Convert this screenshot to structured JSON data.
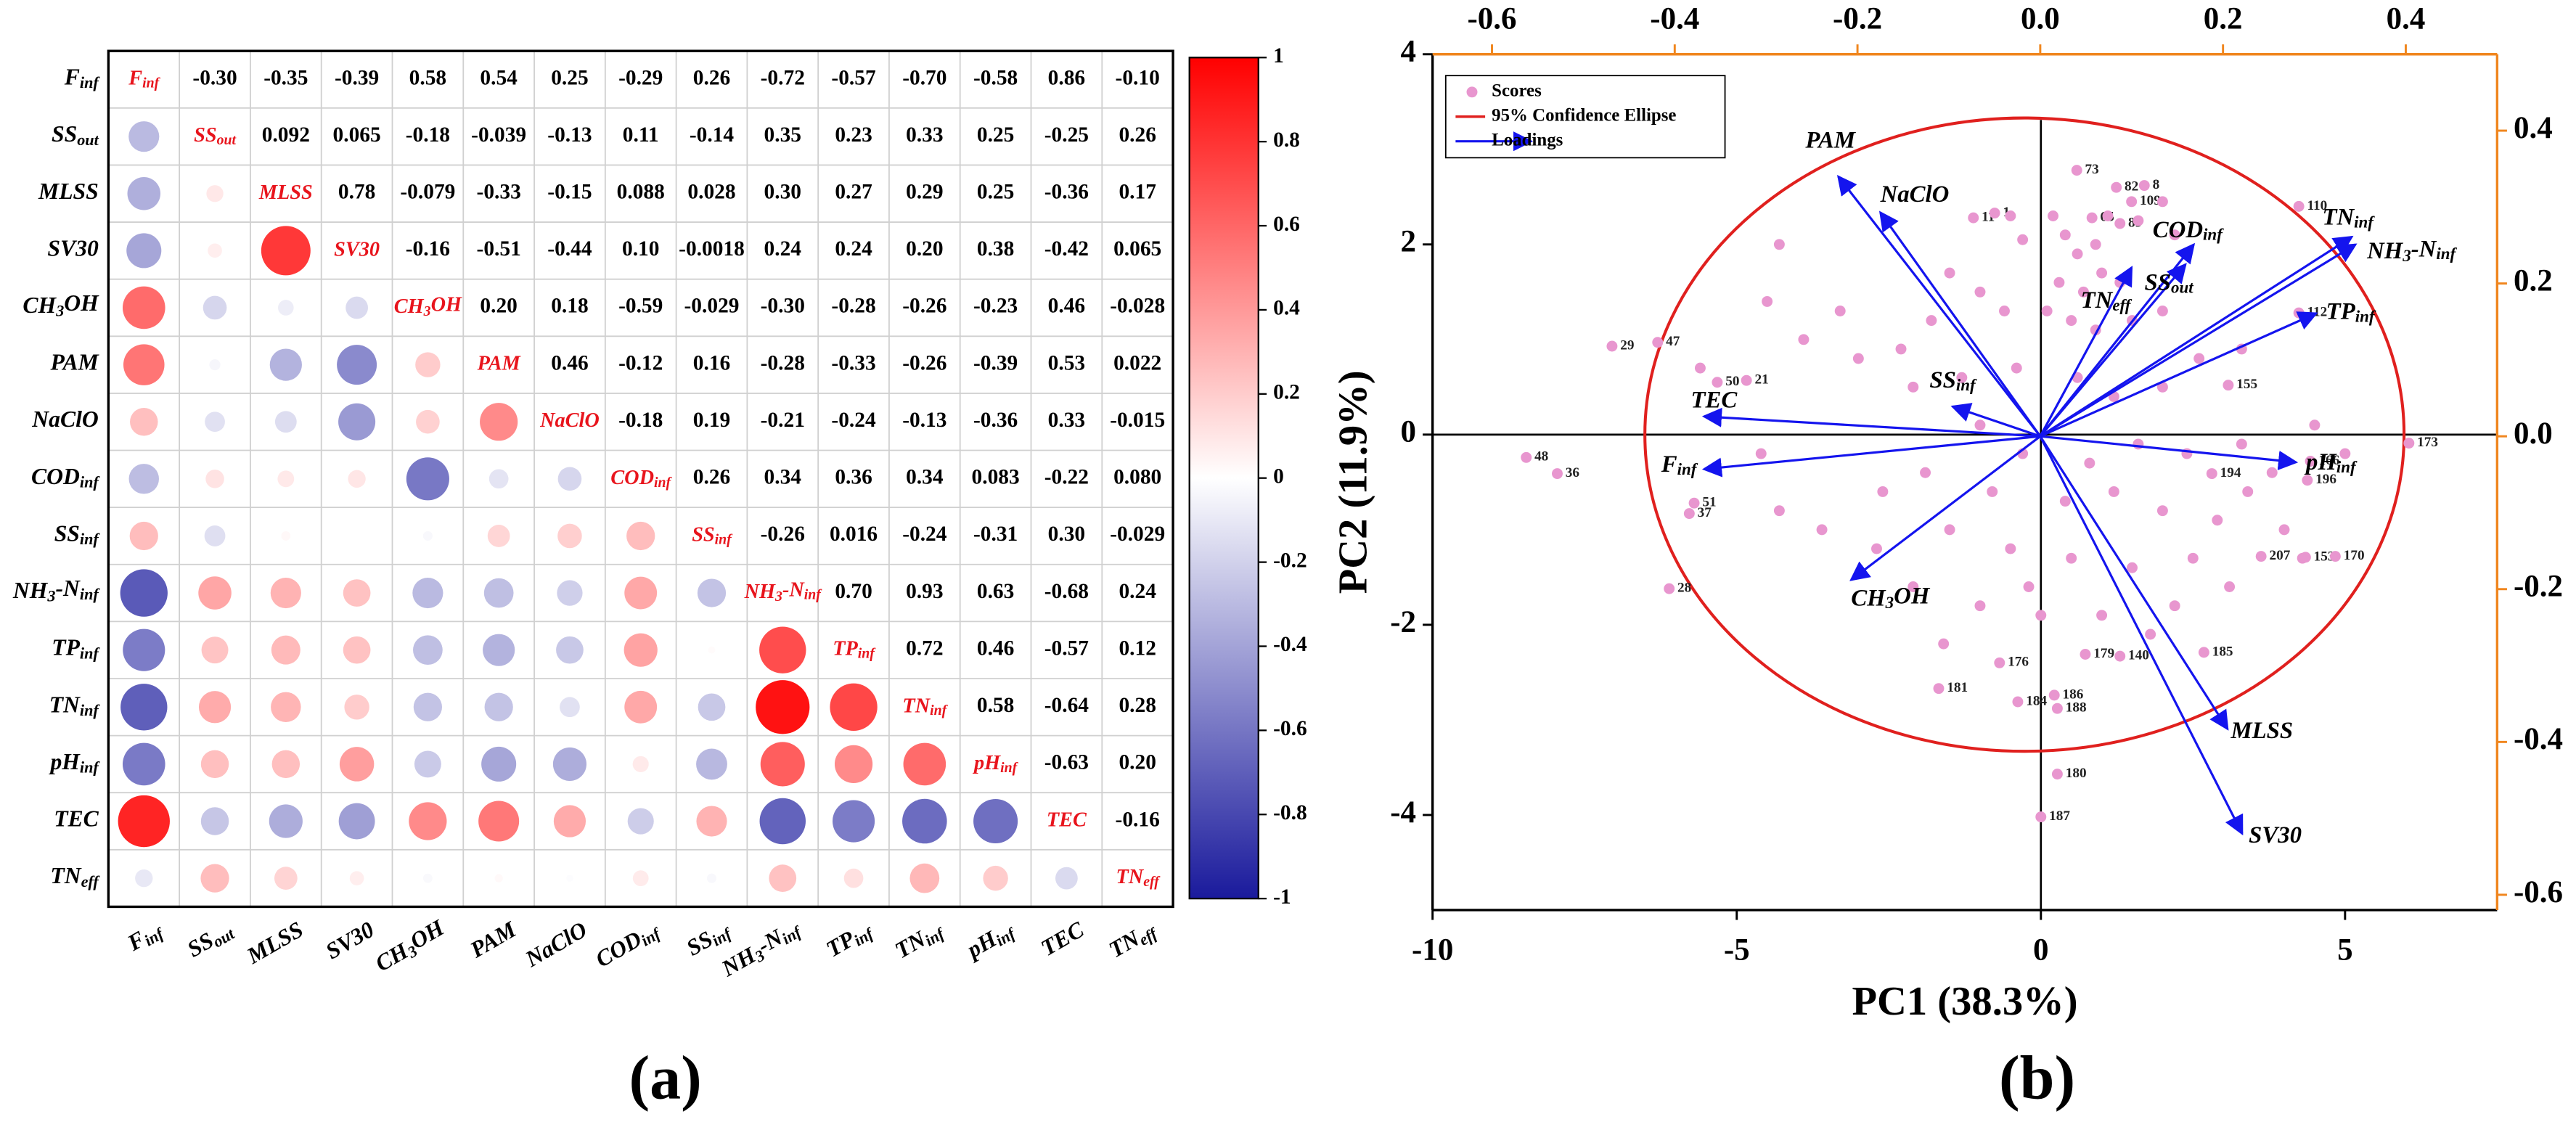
{
  "chart_data": [
    {
      "type": "corrplot",
      "label": "(a)",
      "variables": [
        [
          "F",
          "inf"
        ],
        [
          "SS",
          "out"
        ],
        [
          "MLSS"
        ],
        [
          "SV30"
        ],
        [
          "CH",
          "3",
          "OH"
        ],
        [
          "PAM"
        ],
        [
          "NaClO"
        ],
        [
          "COD",
          "inf"
        ],
        [
          "SS",
          "inf"
        ],
        [
          "NH",
          "3",
          "-N",
          "inf"
        ],
        [
          "TP",
          "inf"
        ],
        [
          "TN",
          "inf"
        ],
        [
          "pH",
          "inf"
        ],
        [
          "TEC"
        ],
        [
          "TN",
          "eff"
        ]
      ],
      "values": [
        [
          -0.3,
          -0.35,
          -0.39,
          0.58,
          0.54,
          0.25,
          -0.29,
          0.26,
          -0.72,
          -0.57,
          -0.7,
          -0.58,
          0.86,
          -0.1
        ],
        [
          0.092,
          0.065,
          -0.18,
          -0.039,
          -0.13,
          0.11,
          -0.14,
          0.35,
          0.23,
          0.33,
          0.25,
          -0.25,
          0.26
        ],
        [
          0.78,
          -0.079,
          -0.33,
          -0.15,
          0.088,
          0.028,
          0.3,
          0.27,
          0.29,
          0.25,
          -0.36,
          0.17
        ],
        [
          -0.16,
          -0.51,
          -0.44,
          0.1,
          -0.0018,
          0.24,
          0.24,
          0.2,
          0.38,
          -0.42,
          0.065
        ],
        [
          0.2,
          0.18,
          -0.59,
          -0.029,
          -0.3,
          -0.28,
          -0.26,
          -0.23,
          0.46,
          -0.028
        ],
        [
          0.46,
          -0.12,
          0.16,
          -0.28,
          -0.33,
          -0.26,
          -0.39,
          0.53,
          0.022
        ],
        [
          -0.18,
          0.19,
          -0.21,
          -0.24,
          -0.13,
          -0.36,
          0.33,
          -0.015
        ],
        [
          0.26,
          0.34,
          0.36,
          0.34,
          0.083,
          -0.22,
          0.08
        ],
        [
          -0.26,
          0.016,
          -0.24,
          -0.31,
          0.3,
          -0.029
        ],
        [
          0.7,
          0.93,
          0.63,
          -0.68,
          0.24
        ],
        [
          0.72,
          0.46,
          -0.57,
          0.12
        ],
        [
          0.58,
          -0.64,
          0.28
        ],
        [
          -0.63,
          0.2
        ],
        [
          -0.16
        ]
      ],
      "value_labels": [
        [
          "-0.30",
          "-0.35",
          "-0.39",
          "0.58",
          "0.54",
          "0.25",
          "-0.29",
          "0.26",
          "-0.72",
          "-0.57",
          "-0.70",
          "-0.58",
          "0.86",
          "-0.10"
        ],
        [
          "0.092",
          "0.065",
          "-0.18",
          "-0.039",
          "-0.13",
          "0.11",
          "-0.14",
          "0.35",
          "0.23",
          "0.33",
          "0.25",
          "-0.25",
          "0.26"
        ],
        [
          "0.78",
          "-0.079",
          "-0.33",
          "-0.15",
          "0.088",
          "0.028",
          "0.30",
          "0.27",
          "0.29",
          "0.25",
          "-0.36",
          "0.17"
        ],
        [
          "-0.16",
          "-0.51",
          "-0.44",
          "0.10",
          "-0.0018",
          "0.24",
          "0.24",
          "0.20",
          "0.38",
          "-0.42",
          "0.065"
        ],
        [
          "0.20",
          "0.18",
          "-0.59",
          "-0.029",
          "-0.30",
          "-0.28",
          "-0.26",
          "-0.23",
          "0.46",
          "-0.028"
        ],
        [
          "0.46",
          "-0.12",
          "0.16",
          "-0.28",
          "-0.33",
          "-0.26",
          "-0.39",
          "0.53",
          "0.022"
        ],
        [
          "-0.18",
          "0.19",
          "-0.21",
          "-0.24",
          "-0.13",
          "-0.36",
          "0.33",
          "-0.015"
        ],
        [
          "0.26",
          "0.34",
          "0.36",
          "0.34",
          "0.083",
          "-0.22",
          "0.080"
        ],
        [
          "-0.26",
          "0.016",
          "-0.24",
          "-0.31",
          "0.30",
          "-0.029"
        ],
        [
          "0.70",
          "0.93",
          "0.63",
          "-0.68",
          "0.24"
        ],
        [
          "0.72",
          "0.46",
          "-0.57",
          "0.12"
        ],
        [
          "0.58",
          "-0.64",
          "0.28"
        ],
        [
          "-0.63",
          "0.20"
        ],
        [
          "-0.16"
        ]
      ],
      "colormap": {
        "negative": "#1a1a9c",
        "zero": "#ffffff",
        "positive": "#ff0000"
      },
      "diagonal_color": "#e8141c",
      "clim": [
        -1,
        1
      ],
      "cticks": [
        1,
        0.8,
        0.6,
        0.4,
        0.2,
        0,
        -0.2,
        -0.4,
        -0.6,
        -0.8,
        -1
      ]
    },
    {
      "type": "biplot",
      "label": "(b)",
      "xlabel": "PC1 (38.3%)",
      "ylabel": "PC2 (11.9%)",
      "xlim": [
        -10,
        7.5
      ],
      "ylim": [
        -5,
        4
      ],
      "xticks": [
        -10,
        -5,
        0,
        5
      ],
      "yticks": [
        -4,
        -2,
        0,
        2,
        4
      ],
      "x2lim": [
        -0.665,
        0.5
      ],
      "y2lim": [
        -0.62,
        0.5
      ],
      "x2ticks": [
        -0.6,
        -0.4,
        -0.2,
        {
          "value": 0,
          "label": "0.0"
        },
        0.2,
        0.4
      ],
      "y2ticks": [
        -0.6,
        -0.4,
        -0.2,
        {
          "value": 0,
          "label": "0.0"
        },
        0.2,
        0.4
      ],
      "secondary_axis_color": "#f0861e",
      "legend": "upper left",
      "scores": {
        "name": "Scores",
        "color": "#e896cf",
        "x": [
          4.24,
          0.59,
          1.24,
          1.7,
          1.49,
          -1.11,
          -0.76,
          0.84,
          1.3,
          -7.05,
          -6.3,
          -5.32,
          -4.84,
          3.08,
          4.24,
          6.05,
          4.43,
          2.81,
          4.38,
          -8.46,
          -7.95,
          -5.78,
          -5.7,
          3.62,
          4.35,
          4.84,
          -6.11,
          -0.68,
          0.73,
          1.3,
          2.68,
          -1.68,
          -0.38,
          0.22,
          0.27,
          0.27,
          0.0,
          -0.5,
          -0.3,
          0.2,
          0.4,
          0.6,
          0.9,
          1.1,
          1.6,
          2.0,
          2.2,
          0.3,
          0.7,
          1.0,
          1.3,
          0.1,
          0.5,
          0.9,
          1.5,
          2.0,
          -1.5,
          -1.0,
          -0.6,
          -1.8,
          -2.3,
          -3.0,
          -4.3,
          -4.5,
          -3.9,
          -2.1,
          -1.3,
          -0.4,
          0.6,
          1.2,
          2.0,
          2.6,
          3.3,
          -1.0,
          -0.3,
          0.8,
          1.6,
          2.4,
          3.3,
          3.8,
          -2.6,
          -1.9,
          -0.8,
          0.4,
          1.2,
          2.0,
          2.9,
          3.4,
          4.0,
          -4.3,
          -3.6,
          -2.7,
          -1.5,
          -0.5,
          0.5,
          1.5,
          2.5,
          3.1,
          -2.1,
          -1.0,
          0.0,
          1.0,
          2.2,
          -0.2,
          1.8,
          -1.6,
          -3.3,
          -5.6,
          -4.6,
          4.5,
          5.0,
          4.3
        ],
        "y": [
          2.4,
          2.78,
          2.6,
          2.62,
          2.45,
          2.28,
          2.33,
          2.28,
          2.22,
          0.93,
          0.97,
          0.55,
          0.57,
          0.52,
          1.28,
          -0.09,
          -0.28,
          -0.41,
          -0.48,
          -0.24,
          -0.41,
          -0.83,
          -0.72,
          -1.28,
          -1.29,
          -1.28,
          -1.62,
          -2.4,
          -2.31,
          -2.33,
          -2.29,
          -2.67,
          -2.81,
          -2.74,
          -2.88,
          -3.57,
          -4.02,
          2.3,
          2.05,
          2.3,
          2.1,
          1.9,
          2.0,
          2.3,
          2.25,
          2.45,
          2.1,
          1.6,
          1.5,
          1.7,
          1.6,
          1.3,
          1.2,
          1.1,
          1.2,
          1.3,
          1.7,
          1.5,
          1.3,
          1.2,
          0.9,
          0.8,
          2.0,
          1.4,
          1.0,
          0.5,
          0.6,
          0.7,
          0.6,
          0.4,
          0.5,
          0.8,
          0.9,
          0.1,
          -0.2,
          -0.3,
          -0.1,
          -0.2,
          -0.1,
          -0.4,
          -0.6,
          -0.4,
          -0.6,
          -0.7,
          -0.6,
          -0.8,
          -0.9,
          -0.6,
          -1.0,
          -0.8,
          -1.0,
          -1.2,
          -1.0,
          -1.2,
          -1.3,
          -1.4,
          -1.3,
          -1.6,
          -1.6,
          -1.8,
          -1.9,
          -1.9,
          -1.8,
          -1.6,
          -2.1,
          -2.2,
          1.3,
          0.7,
          -0.2,
          0.1,
          -0.2,
          -1.3
        ],
        "labels": [
          "110",
          "73",
          "82",
          "8",
          "109",
          "11",
          "1",
          "65",
          "89",
          "29",
          "47",
          "50",
          "21",
          "155",
          "112",
          "173",
          "166",
          "194",
          "196",
          "48",
          "36",
          "37",
          "51",
          "207",
          "153",
          "170",
          "28",
          "176",
          "179",
          "140",
          "185",
          "181",
          "184",
          "186",
          "188",
          "180",
          "187",
          null,
          null,
          null,
          null,
          null,
          null,
          null,
          null,
          null,
          null,
          null,
          null,
          null,
          null,
          null,
          null,
          null,
          null,
          null,
          null,
          null,
          null,
          null,
          null,
          null,
          null,
          null,
          null,
          null,
          null,
          null,
          null,
          null,
          null,
          null,
          null,
          null,
          null,
          null,
          null,
          null,
          null,
          null,
          null,
          null,
          null,
          null,
          null,
          null,
          null,
          null,
          null,
          null,
          null,
          null,
          null,
          null,
          null,
          null,
          null,
          null,
          null,
          null,
          null,
          null,
          null,
          null,
          null,
          null,
          null,
          null,
          null,
          null,
          null,
          null
        ]
      },
      "ellipse": {
        "name": "95% Confidence Ellipse",
        "color": "#e0201e",
        "cx": -0.27,
        "cy": 0,
        "rx": 6.24,
        "ry": 3.33
      },
      "loadings": {
        "name": "Loadings",
        "color": "#1414ee",
        "names": [
          [
            "PAM"
          ],
          [
            "NaClO"
          ],
          [
            "COD",
            "inf"
          ],
          [
            "SS",
            "out"
          ],
          [
            "TN",
            "eff"
          ],
          [
            "TN",
            "inf"
          ],
          [
            "NH",
            "3",
            "-N",
            "inf"
          ],
          [
            "TP",
            "inf"
          ],
          [
            "SS",
            "inf"
          ],
          [
            "TEC"
          ],
          [
            "F",
            "inf"
          ],
          [
            "pH",
            "inf"
          ],
          [
            "CH",
            "3",
            "OH"
          ],
          [
            "MLSS"
          ],
          [
            "SV30"
          ]
        ],
        "x": [
          -0.221,
          -0.175,
          0.168,
          0.159,
          0.1,
          0.341,
          0.345,
          0.302,
          -0.096,
          -0.368,
          -0.368,
          0.28,
          -0.207,
          0.205,
          0.221
        ],
        "y": [
          0.34,
          0.293,
          0.251,
          0.225,
          0.221,
          0.261,
          0.251,
          0.161,
          0.039,
          0.026,
          -0.043,
          -0.034,
          -0.188,
          -0.383,
          -0.52
        ]
      }
    }
  ]
}
